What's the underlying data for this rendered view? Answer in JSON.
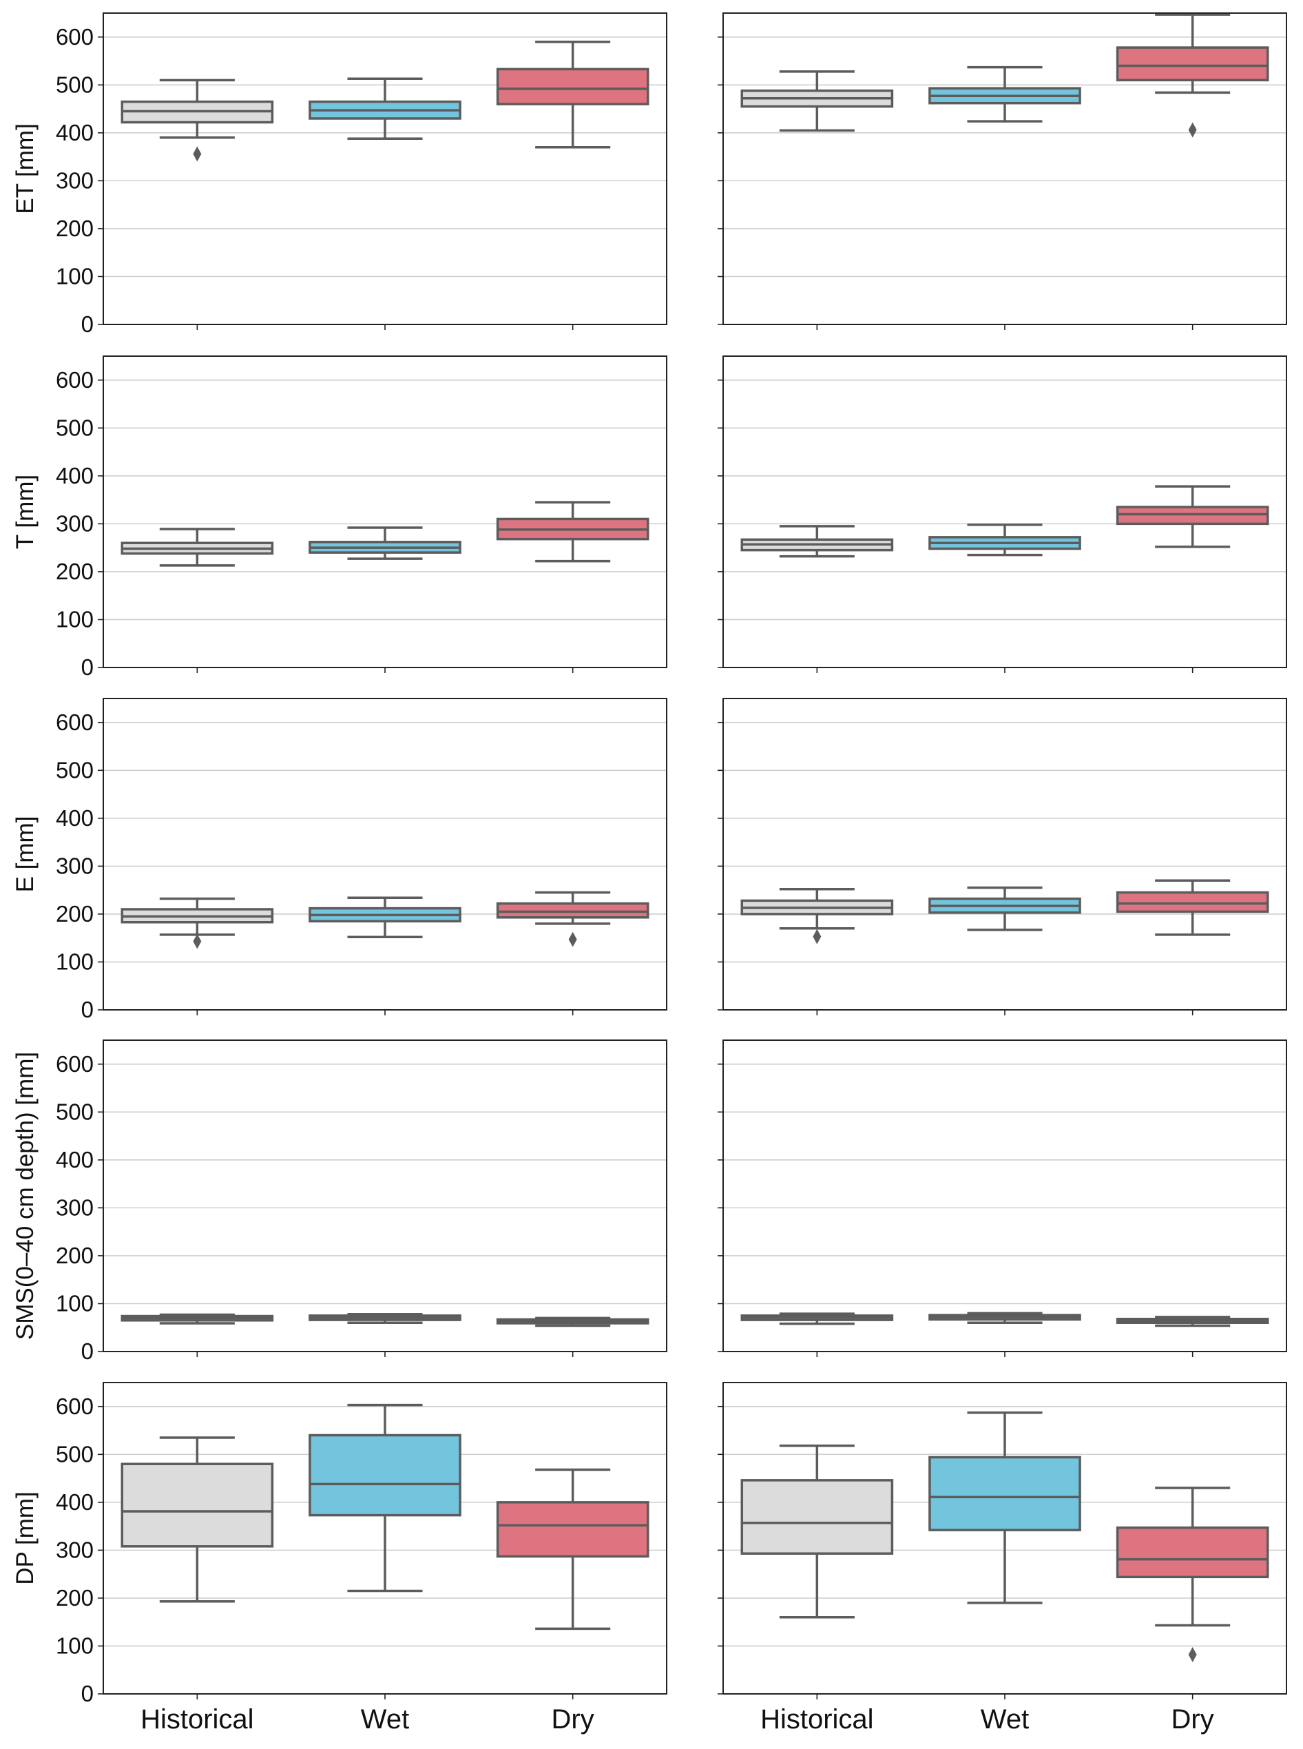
{
  "chart_data": {
    "type": "box",
    "categories": [
      "Historical",
      "Wet",
      "Dry"
    ],
    "colors": {
      "Historical": "#dcdcdc",
      "Wet": "#73c5de",
      "Dry": "#dd7480",
      "edge": "#5c5c5c",
      "grid": "#cfcfcf"
    },
    "ylim": [
      0,
      650
    ],
    "yticks": [
      0,
      100,
      200,
      300,
      400,
      500,
      600
    ],
    "grid": true,
    "rows": [
      {
        "ylabel": "ET [mm]",
        "panels": [
          [
            {
              "whislo": 390,
              "q1": 422,
              "med": 445,
              "q3": 465,
              "whishi": 510,
              "fliers": [
                356
              ]
            },
            {
              "whislo": 388,
              "q1": 430,
              "med": 447,
              "q3": 465,
              "whishi": 513,
              "fliers": []
            },
            {
              "whislo": 370,
              "q1": 460,
              "med": 492,
              "q3": 533,
              "whishi": 590,
              "fliers": []
            }
          ],
          [
            {
              "whislo": 405,
              "q1": 455,
              "med": 472,
              "q3": 488,
              "whishi": 528,
              "fliers": []
            },
            {
              "whislo": 424,
              "q1": 462,
              "med": 477,
              "q3": 493,
              "whishi": 537,
              "fliers": []
            },
            {
              "whislo": 484,
              "q1": 510,
              "med": 540,
              "q3": 578,
              "whishi": 647,
              "fliers": [
                406
              ]
            }
          ]
        ]
      },
      {
        "ylabel": "T [mm]",
        "panels": [
          [
            {
              "whislo": 213,
              "q1": 238,
              "med": 248,
              "q3": 260,
              "whishi": 289,
              "fliers": []
            },
            {
              "whislo": 227,
              "q1": 240,
              "med": 250,
              "q3": 262,
              "whishi": 292,
              "fliers": []
            },
            {
              "whislo": 222,
              "q1": 268,
              "med": 288,
              "q3": 310,
              "whishi": 345,
              "fliers": []
            }
          ],
          [
            {
              "whislo": 232,
              "q1": 245,
              "med": 257,
              "q3": 267,
              "whishi": 295,
              "fliers": []
            },
            {
              "whislo": 235,
              "q1": 248,
              "med": 260,
              "q3": 272,
              "whishi": 298,
              "fliers": []
            },
            {
              "whislo": 252,
              "q1": 300,
              "med": 320,
              "q3": 335,
              "whishi": 378,
              "fliers": []
            }
          ]
        ]
      },
      {
        "ylabel": "E [mm]",
        "panels": [
          [
            {
              "whislo": 157,
              "q1": 183,
              "med": 195,
              "q3": 210,
              "whishi": 232,
              "fliers": [
                143
              ]
            },
            {
              "whislo": 152,
              "q1": 185,
              "med": 198,
              "q3": 212,
              "whishi": 234,
              "fliers": []
            },
            {
              "whislo": 180,
              "q1": 193,
              "med": 205,
              "q3": 222,
              "whishi": 245,
              "fliers": [
                147
              ]
            }
          ],
          [
            {
              "whislo": 170,
              "q1": 200,
              "med": 213,
              "q3": 228,
              "whishi": 252,
              "fliers": [
                153
              ]
            },
            {
              "whislo": 167,
              "q1": 203,
              "med": 217,
              "q3": 232,
              "whishi": 255,
              "fliers": []
            },
            {
              "whislo": 157,
              "q1": 205,
              "med": 222,
              "q3": 245,
              "whishi": 270,
              "fliers": []
            }
          ]
        ]
      },
      {
        "ylabel": "SMS(0–40 cm depth) [mm]",
        "panels": [
          [
            {
              "whislo": 59,
              "q1": 65,
              "med": 70,
              "q3": 74,
              "whishi": 77,
              "fliers": []
            },
            {
              "whislo": 60,
              "q1": 66,
              "med": 71,
              "q3": 75,
              "whishi": 78,
              "fliers": []
            },
            {
              "whislo": 54,
              "q1": 59,
              "med": 63,
              "q3": 67,
              "whishi": 70,
              "fliers": []
            }
          ],
          [
            {
              "whislo": 58,
              "q1": 66,
              "med": 71,
              "q3": 75,
              "whishi": 79,
              "fliers": []
            },
            {
              "whislo": 60,
              "q1": 67,
              "med": 72,
              "q3": 76,
              "whishi": 80,
              "fliers": []
            },
            {
              "whislo": 54,
              "q1": 60,
              "med": 64,
              "q3": 68,
              "whishi": 72,
              "fliers": []
            }
          ]
        ]
      },
      {
        "ylabel": "DP [mm]",
        "panels": [
          [
            {
              "whislo": 193,
              "q1": 308,
              "med": 381,
              "q3": 480,
              "whishi": 535,
              "fliers": []
            },
            {
              "whislo": 215,
              "q1": 373,
              "med": 438,
              "q3": 540,
              "whishi": 603,
              "fliers": []
            },
            {
              "whislo": 136,
              "q1": 287,
              "med": 352,
              "q3": 400,
              "whishi": 468,
              "fliers": []
            }
          ],
          [
            {
              "whislo": 160,
              "q1": 293,
              "med": 357,
              "q3": 446,
              "whishi": 518,
              "fliers": []
            },
            {
              "whislo": 190,
              "q1": 342,
              "med": 411,
              "q3": 494,
              "whishi": 587,
              "fliers": []
            },
            {
              "whislo": 143,
              "q1": 244,
              "med": 281,
              "q3": 347,
              "whishi": 430,
              "fliers": [
                82
              ]
            }
          ]
        ]
      }
    ]
  }
}
